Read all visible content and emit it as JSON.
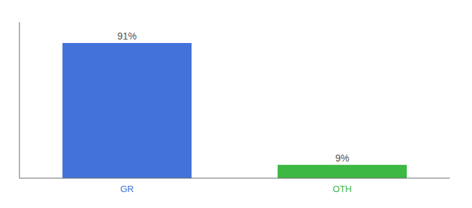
{
  "chart_data": {
    "type": "bar",
    "categories": [
      "GR",
      "OTH"
    ],
    "values": [
      91,
      9
    ],
    "value_labels": [
      "91%",
      "9%"
    ],
    "colors": [
      "#4472db",
      "#3cb843"
    ],
    "ylim": [
      0,
      105
    ],
    "data_labels": true,
    "tick_labels": "x",
    "grid": false
  }
}
